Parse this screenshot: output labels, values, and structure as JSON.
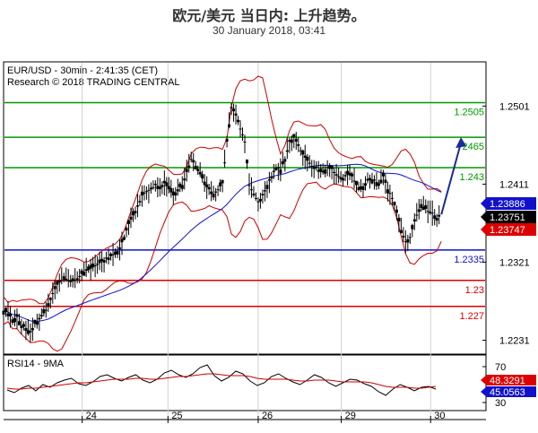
{
  "header": {
    "title": "欧元/美元 当日内: 上升趋势。",
    "subtitle": "30 January 2018, 03:41"
  },
  "chart_data": {
    "type": "line",
    "chart_header": "EUR/USD - 30min - 2:41:35 (CET)",
    "research_note": "Research © 2018 TRADING CENTRAL",
    "x_ticks": [
      "24",
      "25",
      "26",
      "29",
      "30"
    ],
    "y_ticks": [
      {
        "value": 1.2501,
        "label": "1.2501"
      },
      {
        "value": 1.2411,
        "label": "1.2411"
      },
      {
        "value": 1.2321,
        "label": "1.2321"
      },
      {
        "value": 1.2231,
        "label": "1.2231"
      }
    ],
    "ylim": [
      1.2215,
      1.2552
    ],
    "levels": [
      {
        "value": 1.2505,
        "label": "1.2505",
        "color": "#009900"
      },
      {
        "value": 1.2465,
        "label": "2465",
        "color": "#009900"
      },
      {
        "value": 1.243,
        "label": "1.243",
        "color": "#009900"
      },
      {
        "value": 1.2335,
        "label": "1.2335",
        "color": "#1111cc"
      },
      {
        "value": 1.23,
        "label": "1.23",
        "color": "#dd0000"
      },
      {
        "value": 1.227,
        "label": "1.227",
        "color": "#dd0000"
      }
    ],
    "price_badges": [
      {
        "value": 1.23886,
        "label": "1.23886",
        "color": "#1111cc"
      },
      {
        "value": 1.23751,
        "label": "1.23751",
        "color": "#000000"
      },
      {
        "value": 1.23747,
        "label": "1.23747",
        "color": "#dd0000"
      }
    ],
    "price_series": [
      {
        "t": 0,
        "v": 1.2265
      },
      {
        "t": 5,
        "v": 1.2262
      },
      {
        "t": 10,
        "v": 1.2255
      },
      {
        "t": 15,
        "v": 1.2258
      },
      {
        "t": 20,
        "v": 1.2248
      },
      {
        "t": 25,
        "v": 1.2245
      },
      {
        "t": 30,
        "v": 1.224
      },
      {
        "t": 35,
        "v": 1.225
      },
      {
        "t": 40,
        "v": 1.2255
      },
      {
        "t": 45,
        "v": 1.2262
      },
      {
        "t": 50,
        "v": 1.227
      },
      {
        "t": 55,
        "v": 1.2285
      },
      {
        "t": 60,
        "v": 1.2295
      },
      {
        "t": 65,
        "v": 1.23
      },
      {
        "t": 70,
        "v": 1.2302
      },
      {
        "t": 75,
        "v": 1.2298
      },
      {
        "t": 80,
        "v": 1.23
      },
      {
        "t": 85,
        "v": 1.2305
      },
      {
        "t": 90,
        "v": 1.231
      },
      {
        "t": 95,
        "v": 1.2312
      },
      {
        "t": 100,
        "v": 1.2315
      },
      {
        "t": 105,
        "v": 1.2318
      },
      {
        "t": 110,
        "v": 1.2322
      },
      {
        "t": 115,
        "v": 1.2325
      },
      {
        "t": 120,
        "v": 1.2328
      },
      {
        "t": 125,
        "v": 1.233
      },
      {
        "t": 130,
        "v": 1.2338
      },
      {
        "t": 135,
        "v": 1.235
      },
      {
        "t": 140,
        "v": 1.2365
      },
      {
        "t": 145,
        "v": 1.2375
      },
      {
        "t": 150,
        "v": 1.2385
      },
      {
        "t": 155,
        "v": 1.2398
      },
      {
        "t": 160,
        "v": 1.2402
      },
      {
        "t": 165,
        "v": 1.2405
      },
      {
        "t": 170,
        "v": 1.241
      },
      {
        "t": 175,
        "v": 1.2408
      },
      {
        "t": 180,
        "v": 1.2412
      },
      {
        "t": 185,
        "v": 1.2405
      },
      {
        "t": 190,
        "v": 1.2398
      },
      {
        "t": 195,
        "v": 1.2405
      },
      {
        "t": 200,
        "v": 1.241
      },
      {
        "t": 205,
        "v": 1.2425
      },
      {
        "t": 210,
        "v": 1.244
      },
      {
        "t": 215,
        "v": 1.2432
      },
      {
        "t": 220,
        "v": 1.2425
      },
      {
        "t": 225,
        "v": 1.241
      },
      {
        "t": 230,
        "v": 1.2405
      },
      {
        "t": 235,
        "v": 1.24
      },
      {
        "t": 240,
        "v": 1.2405
      },
      {
        "t": 245,
        "v": 1.2412
      },
      {
        "t": 250,
        "v": 1.246
      },
      {
        "t": 255,
        "v": 1.25
      },
      {
        "t": 260,
        "v": 1.249
      },
      {
        "t": 265,
        "v": 1.2475
      },
      {
        "t": 270,
        "v": 1.246
      },
      {
        "t": 275,
        "v": 1.241
      },
      {
        "t": 280,
        "v": 1.24
      },
      {
        "t": 285,
        "v": 1.239
      },
      {
        "t": 290,
        "v": 1.2398
      },
      {
        "t": 295,
        "v": 1.241
      },
      {
        "t": 300,
        "v": 1.242
      },
      {
        "t": 305,
        "v": 1.243
      },
      {
        "t": 310,
        "v": 1.2428
      },
      {
        "t": 315,
        "v": 1.244
      },
      {
        "t": 320,
        "v": 1.246
      },
      {
        "t": 325,
        "v": 1.2465
      },
      {
        "t": 330,
        "v": 1.2455
      },
      {
        "t": 335,
        "v": 1.2445
      },
      {
        "t": 340,
        "v": 1.2438
      },
      {
        "t": 345,
        "v": 1.2432
      },
      {
        "t": 350,
        "v": 1.243
      },
      {
        "t": 355,
        "v": 1.2425
      },
      {
        "t": 360,
        "v": 1.2428
      },
      {
        "t": 365,
        "v": 1.2432
      },
      {
        "t": 370,
        "v": 1.2425
      },
      {
        "t": 375,
        "v": 1.242
      },
      {
        "t": 380,
        "v": 1.2418
      },
      {
        "t": 385,
        "v": 1.2422
      },
      {
        "t": 390,
        "v": 1.242
      },
      {
        "t": 395,
        "v": 1.241
      },
      {
        "t": 400,
        "v": 1.2405
      },
      {
        "t": 405,
        "v": 1.2412
      },
      {
        "t": 410,
        "v": 1.2418
      },
      {
        "t": 415,
        "v": 1.2415
      },
      {
        "t": 420,
        "v": 1.2412
      },
      {
        "t": 425,
        "v": 1.242
      },
      {
        "t": 430,
        "v": 1.2405
      },
      {
        "t": 435,
        "v": 1.2395
      },
      {
        "t": 440,
        "v": 1.2378
      },
      {
        "t": 445,
        "v": 1.2358
      },
      {
        "t": 450,
        "v": 1.2345
      },
      {
        "t": 455,
        "v": 1.235
      },
      {
        "t": 460,
        "v": 1.2368
      },
      {
        "t": 465,
        "v": 1.2382
      },
      {
        "t": 470,
        "v": 1.2385
      },
      {
        "t": 475,
        "v": 1.238
      },
      {
        "t": 480,
        "v": 1.2378
      },
      {
        "t": 485,
        "v": 1.2372
      },
      {
        "t": 490,
        "v": 1.2375
      }
    ],
    "forecast_arrow": {
      "from": {
        "t": 490,
        "v": 1.2376
      },
      "to": {
        "t": 512,
        "v": 1.2465
      }
    },
    "rsi": {
      "label": "RSI14 - 9MA",
      "y_ticks": [
        {
          "value": 70,
          "label": "70"
        },
        {
          "value": 30,
          "label": "30"
        }
      ],
      "ylim": [
        22,
        82
      ],
      "badges": [
        {
          "value": 48.3291,
          "label": "48.3291",
          "color": "#dd0000"
        },
        {
          "value": 45.0563,
          "label": "45.0563",
          "color": "#1111cc"
        }
      ],
      "rsi_values": [
        44,
        41,
        46,
        49,
        43,
        50,
        47,
        52,
        55,
        57,
        51,
        49,
        53,
        59,
        61,
        57,
        54,
        58,
        61,
        55,
        52,
        56,
        63,
        66,
        61,
        58,
        62,
        69,
        72,
        60,
        54,
        58,
        65,
        62,
        54,
        49,
        52,
        59,
        62,
        57,
        53,
        50,
        55,
        61,
        58,
        52,
        48,
        52,
        56,
        55,
        51,
        48,
        42,
        38,
        45,
        50,
        47,
        43,
        47,
        48,
        45
      ],
      "ma_values": [
        46,
        45,
        45,
        46,
        46,
        47,
        48,
        49,
        50,
        51,
        52,
        52,
        53,
        54,
        55,
        56,
        56,
        56,
        57,
        57,
        56,
        56,
        57,
        58,
        59,
        59,
        60,
        61,
        62,
        62,
        61,
        60,
        60,
        60,
        59,
        57,
        56,
        56,
        56,
        56,
        55,
        54,
        54,
        55,
        55,
        55,
        54,
        53,
        53,
        53,
        53,
        52,
        50,
        48,
        47,
        47,
        47,
        46,
        46,
        47,
        48
      ]
    }
  }
}
